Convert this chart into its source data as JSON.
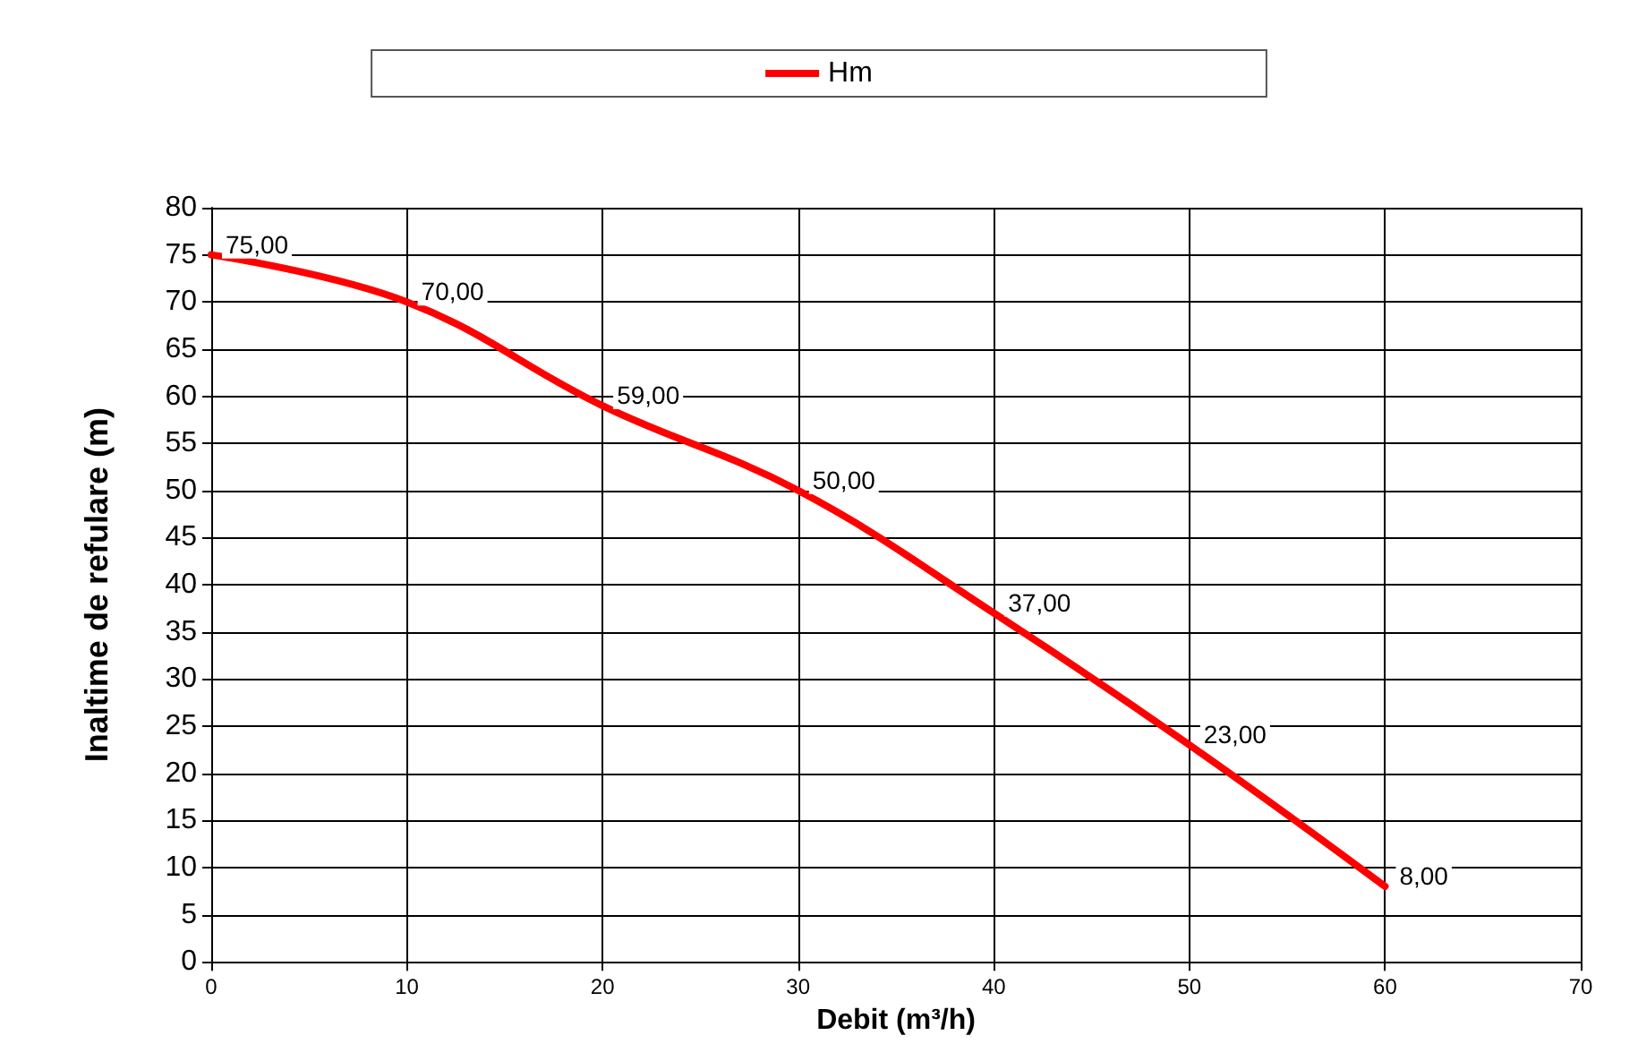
{
  "chart_data": {
    "type": "line",
    "xlabel": "Debit (m³/h)",
    "ylabel": "Inaltime de refulare (m)",
    "x": [
      0,
      10,
      20,
      30,
      40,
      50,
      60
    ],
    "series": [
      {
        "name": "Hm",
        "color": "#ff0000",
        "values": [
          75,
          70,
          59,
          50,
          37,
          23,
          8
        ],
        "value_labels": [
          "75,00",
          "70,00",
          "59,00",
          "50,00",
          "37,00",
          "23,00",
          "8,00"
        ]
      }
    ],
    "xlim": [
      0,
      70
    ],
    "xticks": [
      0,
      10,
      20,
      30,
      40,
      50,
      60,
      70
    ],
    "ylim": [
      0,
      80
    ],
    "yticks": [
      0,
      5,
      10,
      15,
      20,
      25,
      30,
      35,
      40,
      45,
      50,
      55,
      60,
      65,
      70,
      75,
      80
    ],
    "grid": true,
    "legend": "top",
    "marker": "none",
    "line_style": "solid"
  }
}
